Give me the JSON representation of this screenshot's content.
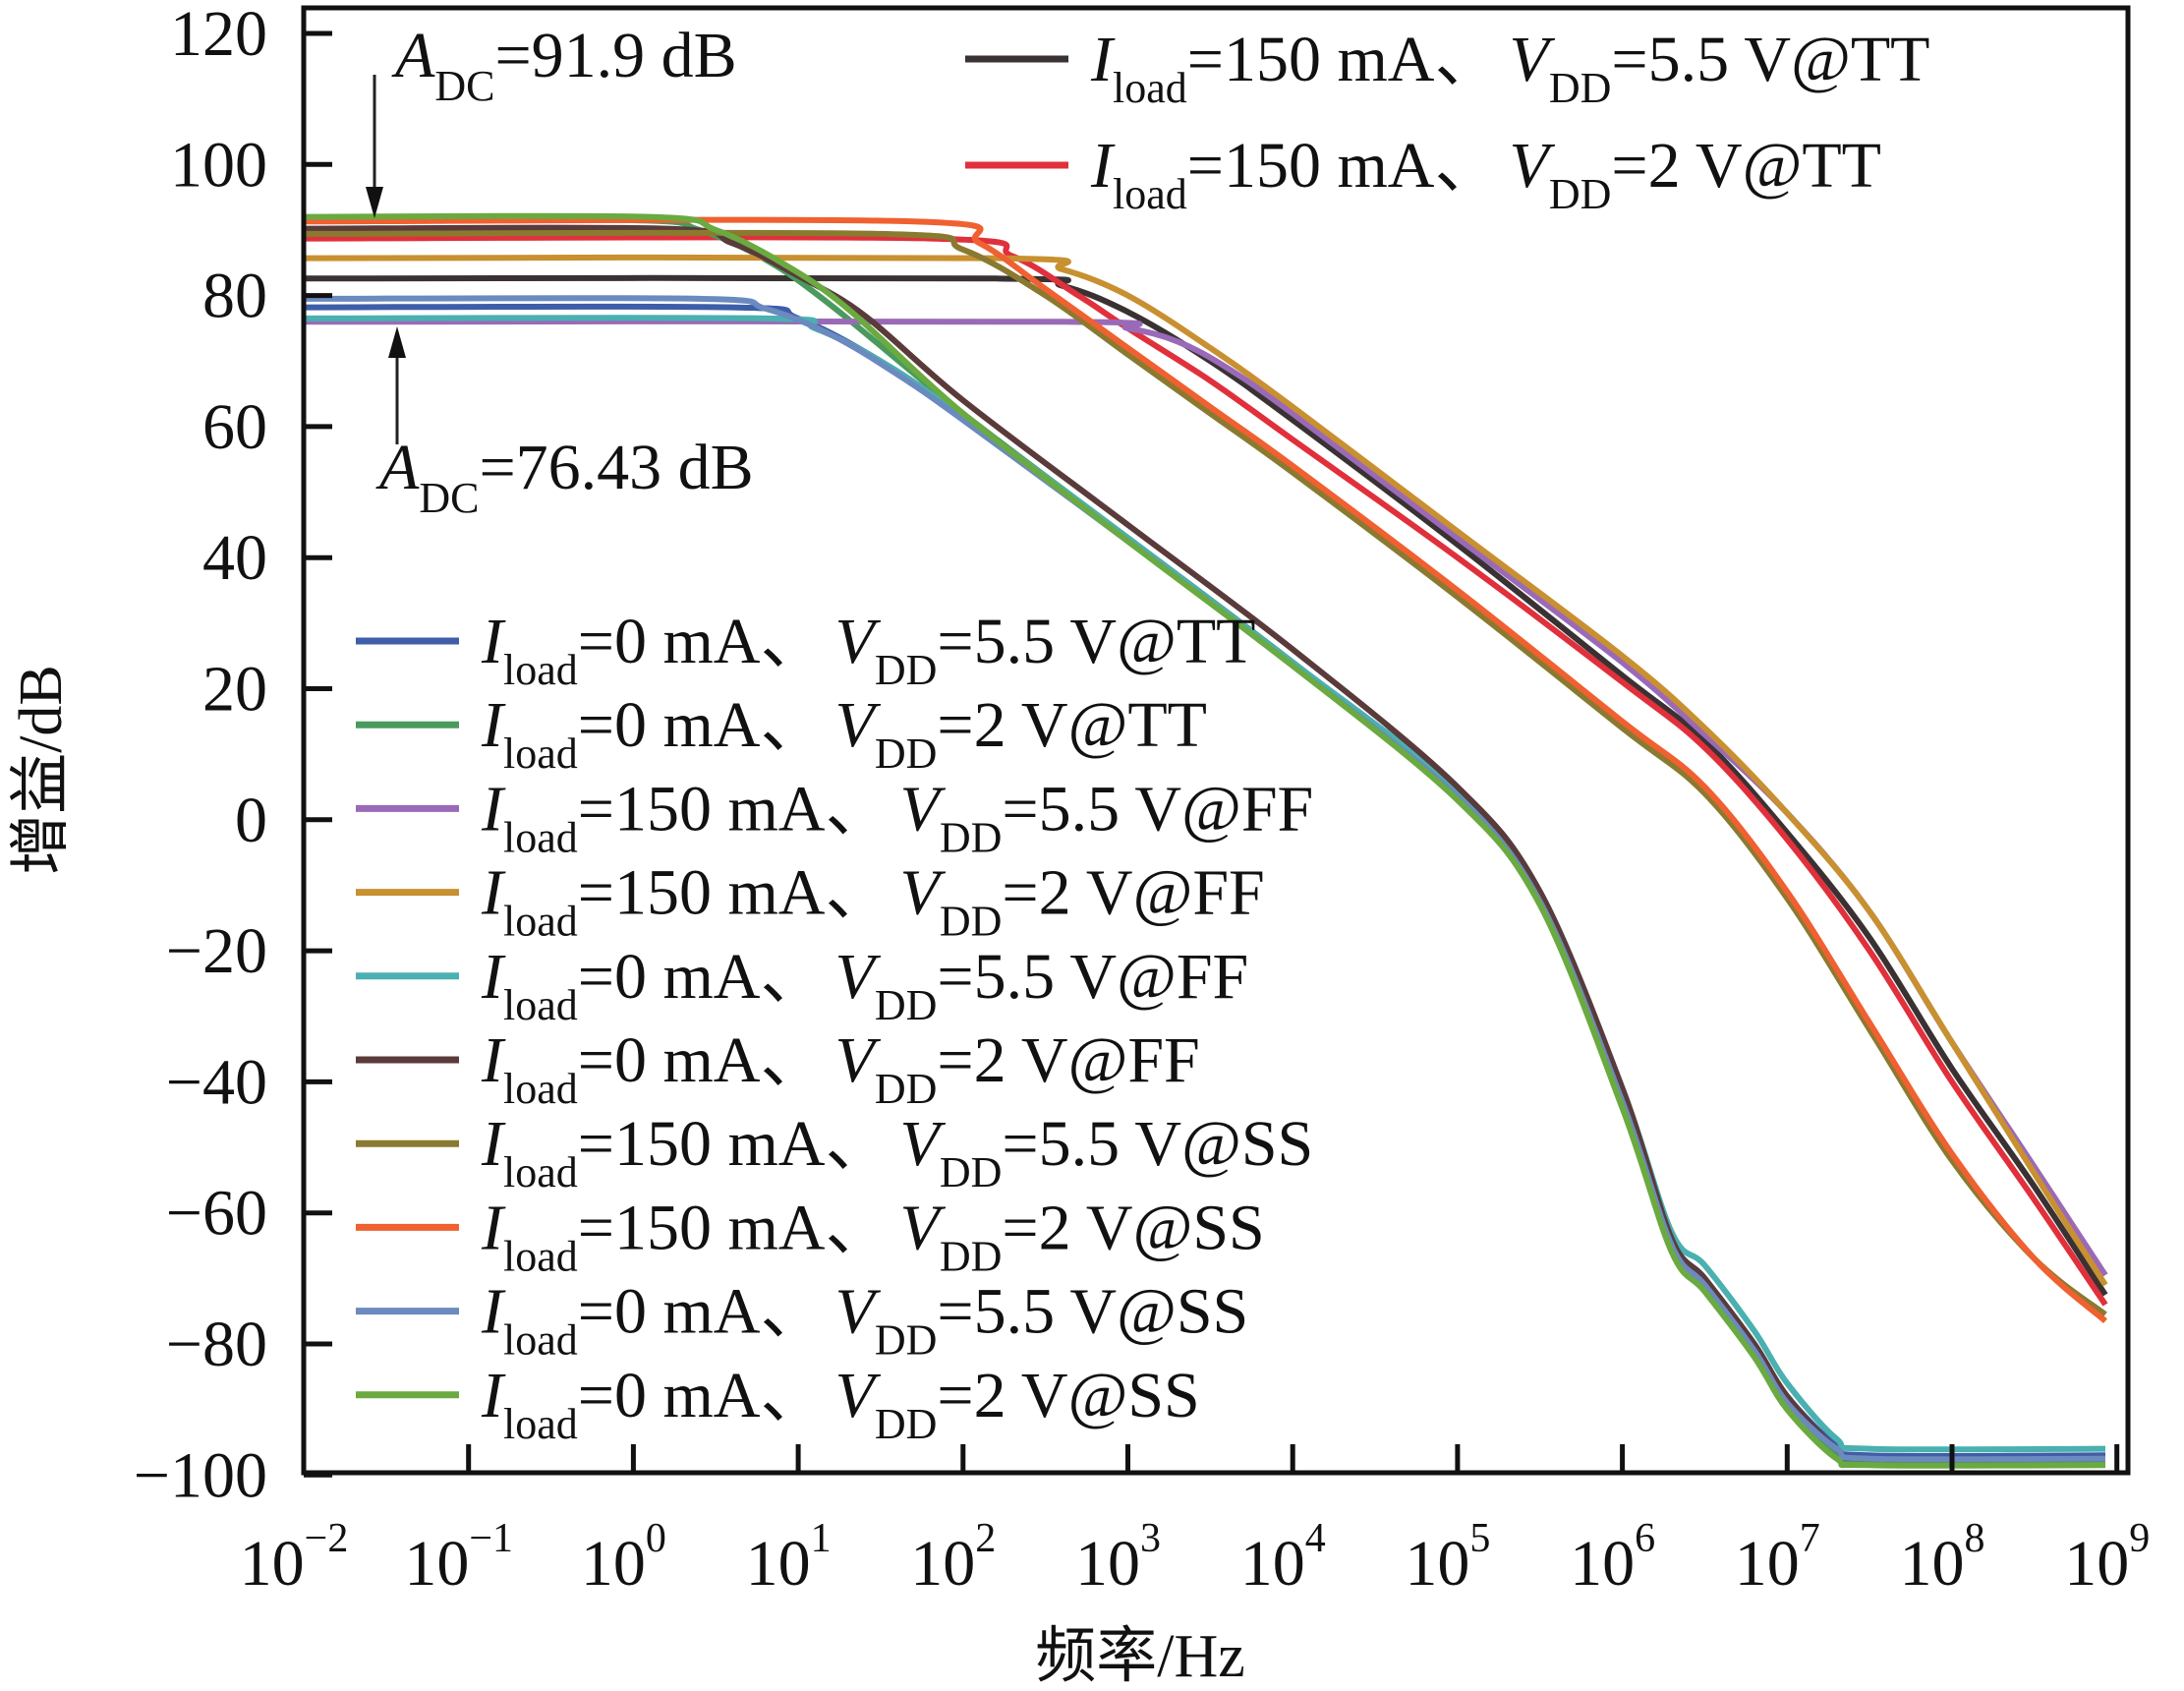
{
  "chart_data": {
    "type": "line",
    "title": "",
    "xlabel": "频率/Hz",
    "ylabel": "增益/dB",
    "xscale": "log",
    "xlim_log10": [
      -2,
      9
    ],
    "ylim": [
      -100,
      120
    ],
    "grid": false,
    "x_ticks": [
      {
        "base": "10",
        "exp": "−2",
        "log10": -2
      },
      {
        "base": "10",
        "exp": "−1",
        "log10": -1
      },
      {
        "base": "10",
        "exp": "0",
        "log10": 0
      },
      {
        "base": "10",
        "exp": "1",
        "log10": 1
      },
      {
        "base": "10",
        "exp": "2",
        "log10": 2
      },
      {
        "base": "10",
        "exp": "3",
        "log10": 3
      },
      {
        "base": "10",
        "exp": "4",
        "log10": 4
      },
      {
        "base": "10",
        "exp": "5",
        "log10": 5
      },
      {
        "base": "10",
        "exp": "6",
        "log10": 6
      },
      {
        "base": "10",
        "exp": "7",
        "log10": 7
      },
      {
        "base": "10",
        "exp": "8",
        "log10": 8
      },
      {
        "base": "10",
        "exp": "9",
        "log10": 9
      }
    ],
    "y_ticks": [
      {
        "value": 120,
        "label": "120"
      },
      {
        "value": 100,
        "label": "100"
      },
      {
        "value": 80,
        "label": "80"
      },
      {
        "value": 60,
        "label": "60"
      },
      {
        "value": 40,
        "label": "40"
      },
      {
        "value": 20,
        "label": "20"
      },
      {
        "value": 0,
        "label": "0"
      },
      {
        "value": -20,
        "label": "−20"
      },
      {
        "value": -40,
        "label": "−40"
      },
      {
        "value": -60,
        "label": "−60"
      },
      {
        "value": -80,
        "label": "−80"
      },
      {
        "value": -100,
        "label": "−100"
      }
    ],
    "annotations": [
      {
        "id": "max",
        "symbol": "A",
        "sub": "DC",
        "text": "=91.9 dB",
        "value_db": 91.9,
        "arrow": "down"
      },
      {
        "id": "min",
        "symbol": "A",
        "sub": "DC",
        "text": "=76.43 dB",
        "value_db": 76.43,
        "arrow": "up"
      }
    ],
    "legend_top_right": [
      0,
      1
    ],
    "legend_lower_left": [
      2,
      3,
      4,
      5,
      6,
      7,
      8,
      9,
      10,
      11
    ],
    "series": [
      {
        "name": "Iload=150 mA、VDD=5.5 V@TT",
        "iload": "150 mA",
        "vdd": "5.5 V@TT",
        "color": "#3a3232",
        "points": [
          [
            -2,
            82.6
          ],
          [
            2.2,
            82.6
          ],
          [
            2.6,
            81.5
          ],
          [
            3,
            77.5
          ],
          [
            3.5,
            70
          ],
          [
            4,
            61
          ],
          [
            5,
            42
          ],
          [
            6,
            22
          ],
          [
            6.5,
            12
          ],
          [
            7,
            -2
          ],
          [
            7.5,
            -18
          ],
          [
            8,
            -38
          ],
          [
            8.5,
            -56
          ],
          [
            8.93,
            -72.5
          ]
        ]
      },
      {
        "name": "Iload=150 mA、VDD=2 V@TT",
        "iload": "150 mA",
        "vdd": "2 V@TT",
        "color": "#e0303c",
        "points": [
          [
            -2,
            88.7
          ],
          [
            1.8,
            88.7
          ],
          [
            2.3,
            86
          ],
          [
            2.7,
            80
          ],
          [
            3,
            75
          ],
          [
            3.5,
            67
          ],
          [
            4,
            58
          ],
          [
            5,
            40
          ],
          [
            6,
            21
          ],
          [
            6.5,
            11
          ],
          [
            7,
            -3
          ],
          [
            7.5,
            -20
          ],
          [
            8,
            -40
          ],
          [
            8.5,
            -58
          ],
          [
            8.93,
            -74
          ]
        ]
      },
      {
        "name": "Iload=0 mA、VDD=5.5 V@TT",
        "iload": "0 mA",
        "vdd": "5.5 V@TT",
        "color": "#3f5ea8",
        "points": [
          [
            -2,
            78.2
          ],
          [
            0.6,
            78.2
          ],
          [
            1,
            76.5
          ],
          [
            1.5,
            70
          ],
          [
            2,
            61.5
          ],
          [
            3,
            43
          ],
          [
            4,
            24
          ],
          [
            5,
            4
          ],
          [
            5.5,
            -12
          ],
          [
            6,
            -42
          ],
          [
            6.3,
            -64
          ],
          [
            6.5,
            -70
          ],
          [
            6.8,
            -80
          ],
          [
            7,
            -88
          ],
          [
            7.3,
            -95.5
          ],
          [
            7.5,
            -97
          ],
          [
            8.93,
            -97
          ]
        ]
      },
      {
        "name": "Iload=0 mA、VDD=2 V@TT",
        "iload": "0 mA",
        "vdd": "2 V@TT",
        "color": "#4a9a5e",
        "points": [
          [
            -2,
            91.5
          ],
          [
            0,
            91.5
          ],
          [
            0.4,
            90
          ],
          [
            0.8,
            85.5
          ],
          [
            1.2,
            78.5
          ],
          [
            2,
            62
          ],
          [
            3,
            43
          ],
          [
            4,
            24
          ],
          [
            5,
            4
          ],
          [
            5.5,
            -12
          ],
          [
            6,
            -43
          ],
          [
            6.3,
            -65
          ],
          [
            6.5,
            -71
          ],
          [
            6.8,
            -81
          ],
          [
            7,
            -89
          ],
          [
            7.3,
            -96.5
          ],
          [
            7.5,
            -98
          ],
          [
            8.93,
            -98
          ]
        ]
      },
      {
        "name": "Iload=150 mA、VDD=5.5 V@FF",
        "iload": "150 mA",
        "vdd": "5.5 V@FF",
        "color": "#9a6ab8",
        "points": [
          [
            -2,
            76
          ],
          [
            2.6,
            76
          ],
          [
            3,
            75
          ],
          [
            3.3,
            73
          ],
          [
            3.6,
            69
          ],
          [
            4,
            62
          ],
          [
            5,
            43
          ],
          [
            6,
            24
          ],
          [
            6.5,
            13
          ],
          [
            7,
            1
          ],
          [
            7.5,
            -14
          ],
          [
            8,
            -34
          ],
          [
            8.5,
            -53
          ],
          [
            8.93,
            -69.5
          ]
        ]
      },
      {
        "name": "Iload=150 mA、VDD=2 V@FF",
        "iload": "150 mA",
        "vdd": "2 V@FF",
        "color": "#c89030",
        "points": [
          [
            -2,
            85.7
          ],
          [
            2.2,
            85.7
          ],
          [
            2.6,
            84
          ],
          [
            3,
            80
          ],
          [
            3.5,
            72
          ],
          [
            4,
            63
          ],
          [
            5,
            44
          ],
          [
            6,
            25
          ],
          [
            6.5,
            14
          ],
          [
            7,
            1
          ],
          [
            7.5,
            -14
          ],
          [
            8,
            -34
          ],
          [
            8.5,
            -54
          ],
          [
            8.93,
            -71
          ]
        ]
      },
      {
        "name": "Iload=0 mA、VDD=5.5 V@FF",
        "iload": "0 mA",
        "vdd": "5.5 V@FF",
        "color": "#4ab0b0",
        "points": [
          [
            -2,
            76.5
          ],
          [
            0.8,
            76.5
          ],
          [
            1.1,
            75
          ],
          [
            1.5,
            70
          ],
          [
            2,
            61.5
          ],
          [
            3,
            43
          ],
          [
            4,
            24
          ],
          [
            5,
            4.5
          ],
          [
            5.5,
            -11
          ],
          [
            6,
            -41
          ],
          [
            6.3,
            -63
          ],
          [
            6.5,
            -68
          ],
          [
            6.8,
            -78
          ],
          [
            7,
            -86
          ],
          [
            7.3,
            -94.5
          ],
          [
            7.5,
            -96
          ],
          [
            8.93,
            -96
          ]
        ]
      },
      {
        "name": "Iload=0 mA、VDD=2 V@FF",
        "iload": "0 mA",
        "vdd": "2 V@FF",
        "color": "#5a3a3a",
        "points": [
          [
            -2,
            90.2
          ],
          [
            0.2,
            90.2
          ],
          [
            0.6,
            88
          ],
          [
            1,
            83
          ],
          [
            1.4,
            77
          ],
          [
            2,
            64
          ],
          [
            3,
            45
          ],
          [
            4,
            26
          ],
          [
            5,
            5
          ],
          [
            5.5,
            -11
          ],
          [
            6,
            -41
          ],
          [
            6.3,
            -64
          ],
          [
            6.5,
            -70
          ],
          [
            6.8,
            -80
          ],
          [
            7,
            -88
          ],
          [
            7.3,
            -96
          ],
          [
            7.5,
            -97.5
          ],
          [
            8.93,
            -97.5
          ]
        ]
      },
      {
        "name": "Iload=150 mA、VDD=5.5 V@SS",
        "iload": "150 mA",
        "vdd": "5.5 V@SS",
        "color": "#8a7a30",
        "points": [
          [
            -2,
            89.4
          ],
          [
            1.5,
            89.4
          ],
          [
            2,
            87
          ],
          [
            2.5,
            80
          ],
          [
            3,
            71
          ],
          [
            3.5,
            62
          ],
          [
            4,
            53
          ],
          [
            5,
            34
          ],
          [
            6,
            14
          ],
          [
            6.5,
            4
          ],
          [
            7,
            -12
          ],
          [
            7.5,
            -32
          ],
          [
            8,
            -52
          ],
          [
            8.5,
            -67
          ],
          [
            8.93,
            -75.5
          ]
        ]
      },
      {
        "name": "Iload=150 mA、VDD=2 V@SS",
        "iload": "150 mA",
        "vdd": "2 V@SS",
        "color": "#f06030",
        "points": [
          [
            -2,
            91.3
          ],
          [
            1.7,
            91.3
          ],
          [
            2.1,
            88
          ],
          [
            2.5,
            81
          ],
          [
            3,
            72
          ],
          [
            3.5,
            63
          ],
          [
            4,
            54
          ],
          [
            5,
            35
          ],
          [
            6,
            15
          ],
          [
            6.5,
            5
          ],
          [
            7,
            -11
          ],
          [
            7.5,
            -31
          ],
          [
            8,
            -51
          ],
          [
            8.5,
            -67
          ],
          [
            8.93,
            -76.5
          ]
        ]
      },
      {
        "name": "Iload=0 mA、VDD=5.5 V@SS",
        "iload": "0 mA",
        "vdd": "5.5 V@SS",
        "color": "#6a8ac0",
        "points": [
          [
            -2,
            79.5
          ],
          [
            0.4,
            79.5
          ],
          [
            0.8,
            78
          ],
          [
            1.2,
            74
          ],
          [
            1.6,
            68
          ],
          [
            2,
            61
          ],
          [
            3,
            42.5
          ],
          [
            4,
            23.5
          ],
          [
            5,
            3.5
          ],
          [
            5.5,
            -12.5
          ],
          [
            6,
            -43
          ],
          [
            6.3,
            -65
          ],
          [
            6.5,
            -71
          ],
          [
            6.8,
            -81
          ],
          [
            7,
            -89
          ],
          [
            7.3,
            -96
          ],
          [
            7.5,
            -97.5
          ],
          [
            8.93,
            -97.5
          ]
        ]
      },
      {
        "name": "Iload=0 mA、VDD=2 V@SS",
        "iload": "0 mA",
        "vdd": "2 V@SS",
        "color": "#6aaa40",
        "points": [
          [
            -2,
            92
          ],
          [
            0.1,
            92
          ],
          [
            0.5,
            90
          ],
          [
            0.9,
            85
          ],
          [
            1.3,
            78
          ],
          [
            2,
            62
          ],
          [
            3,
            42.5
          ],
          [
            4,
            23.5
          ],
          [
            5,
            3
          ],
          [
            5.5,
            -13
          ],
          [
            6,
            -44
          ],
          [
            6.3,
            -66
          ],
          [
            6.5,
            -72
          ],
          [
            6.8,
            -82
          ],
          [
            7,
            -90
          ],
          [
            7.3,
            -97.5
          ],
          [
            7.5,
            -98.5
          ],
          [
            8.93,
            -98.5
          ]
        ]
      }
    ]
  }
}
